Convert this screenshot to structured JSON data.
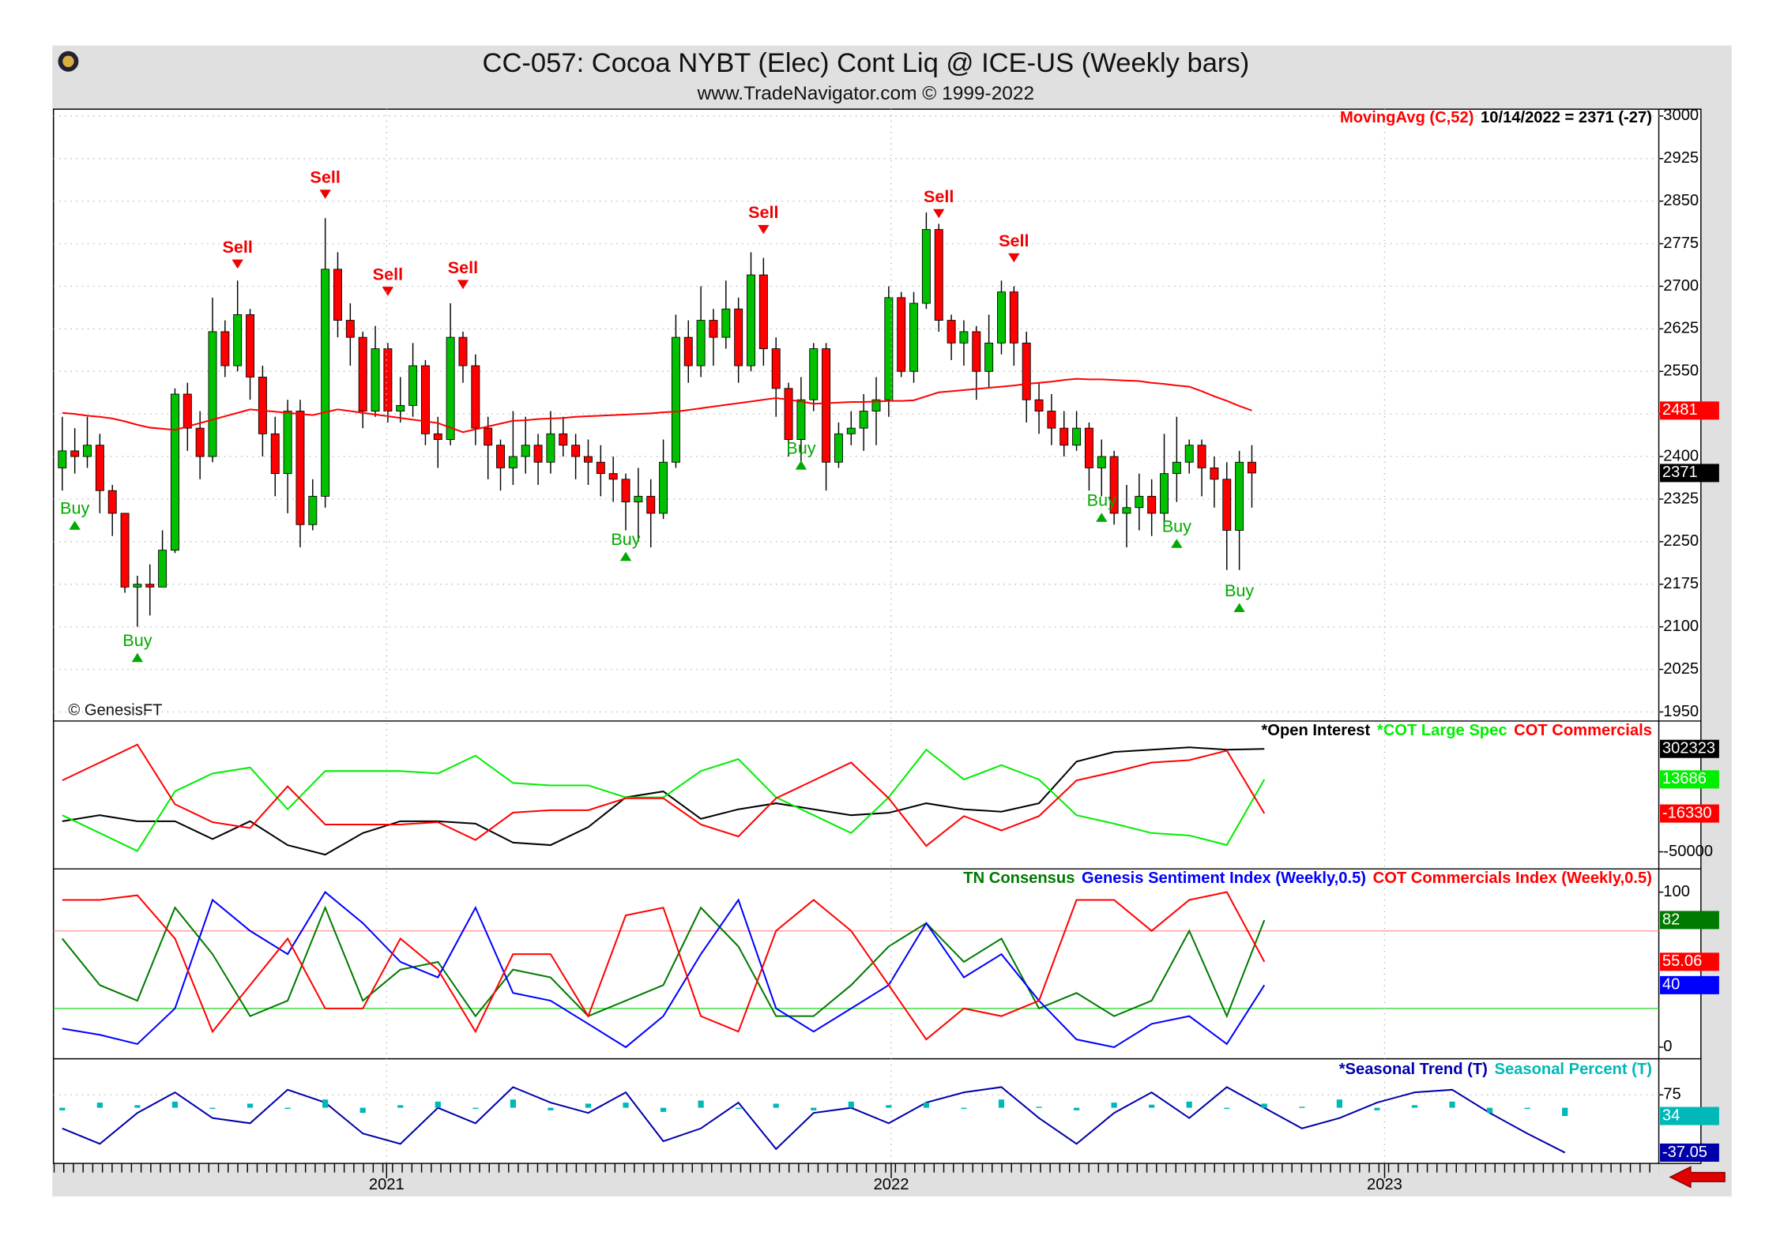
{
  "chart_data": [
    {
      "type": "candlestick",
      "title": "CC-057:  Cocoa NYBT (Elec) Cont Liq @ ICE-US  (Weekly bars)",
      "subtitle": "www.TradeNavigator.com © 1999-2022",
      "annotation": "© GenesisFT",
      "status": "10/14/2022 = 2371 (-27)",
      "xlim": [
        -0.7,
        127.5
      ],
      "ylim": [
        1934,
        3012
      ],
      "yticks": [
        1950,
        2025,
        2100,
        2175,
        2250,
        2325,
        2400,
        2475,
        2550,
        2625,
        2700,
        2775,
        2850,
        2925,
        3000
      ],
      "grid": true,
      "up_color": "#00c000",
      "down_color": "#ff0000",
      "open": [
        2380,
        2410,
        2400,
        2420,
        2340,
        2300,
        2170,
        2175,
        2170,
        2235,
        2510,
        2450,
        2400,
        2620,
        2560,
        2650,
        2540,
        2440,
        2370,
        2480,
        2280,
        2330,
        2730,
        2640,
        2610,
        2480,
        2590,
        2480,
        2490,
        2560,
        2440,
        2430,
        2610,
        2560,
        2450,
        2420,
        2380,
        2400,
        2420,
        2390,
        2440,
        2420,
        2400,
        2390,
        2370,
        2360,
        2320,
        2330,
        2300,
        2390,
        2610,
        2560,
        2640,
        2610,
        2660,
        2560,
        2720,
        2590,
        2520,
        2430,
        2500,
        2590,
        2390,
        2440,
        2450,
        2480,
        2500,
        2680,
        2550,
        2670,
        2800,
        2640,
        2600,
        2620,
        2550,
        2600,
        2690,
        2600,
        2500,
        2480,
        2450,
        2420,
        2450,
        2380,
        2400,
        2300,
        2310,
        2330,
        2300,
        2370,
        2390,
        2420,
        2380,
        2360,
        2270,
        2390
      ],
      "high": [
        2470,
        2450,
        2470,
        2440,
        2350,
        2300,
        2190,
        2210,
        2270,
        2520,
        2530,
        2480,
        2680,
        2640,
        2710,
        2660,
        2560,
        2470,
        2500,
        2500,
        2360,
        2820,
        2760,
        2670,
        2620,
        2630,
        2600,
        2540,
        2600,
        2570,
        2470,
        2670,
        2620,
        2580,
        2470,
        2430,
        2480,
        2470,
        2440,
        2480,
        2470,
        2440,
        2430,
        2420,
        2400,
        2370,
        2380,
        2360,
        2430,
        2650,
        2640,
        2700,
        2660,
        2710,
        2680,
        2760,
        2750,
        2610,
        2530,
        2540,
        2600,
        2600,
        2460,
        2480,
        2510,
        2540,
        2700,
        2690,
        2690,
        2830,
        2810,
        2650,
        2640,
        2630,
        2650,
        2710,
        2700,
        2620,
        2530,
        2510,
        2480,
        2480,
        2460,
        2430,
        2410,
        2350,
        2370,
        2360,
        2440,
        2470,
        2430,
        2430,
        2400,
        2390,
        2410,
        2420
      ],
      "low": [
        2340,
        2370,
        2380,
        2300,
        2260,
        2160,
        2100,
        2120,
        2170,
        2230,
        2410,
        2360,
        2390,
        2540,
        2550,
        2500,
        2400,
        2330,
        2300,
        2240,
        2270,
        2310,
        2610,
        2560,
        2450,
        2470,
        2460,
        2460,
        2470,
        2420,
        2380,
        2420,
        2530,
        2420,
        2360,
        2340,
        2350,
        2370,
        2350,
        2370,
        2400,
        2360,
        2350,
        2330,
        2320,
        2270,
        2250,
        2240,
        2290,
        2380,
        2530,
        2540,
        2560,
        2590,
        2530,
        2550,
        2560,
        2470,
        2400,
        2380,
        2480,
        2340,
        2380,
        2420,
        2410,
        2420,
        2470,
        2540,
        2530,
        2660,
        2620,
        2570,
        2560,
        2500,
        2520,
        2580,
        2560,
        2460,
        2440,
        2420,
        2400,
        2410,
        2340,
        2330,
        2280,
        2240,
        2270,
        2260,
        2280,
        2320,
        2370,
        2330,
        2310,
        2200,
        2200,
        2310
      ],
      "close": [
        2410,
        2400,
        2420,
        2340,
        2300,
        2170,
        2175,
        2170,
        2235,
        2510,
        2450,
        2400,
        2620,
        2560,
        2650,
        2540,
        2440,
        2370,
        2480,
        2280,
        2330,
        2730,
        2640,
        2610,
        2480,
        2590,
        2480,
        2490,
        2560,
        2440,
        2430,
        2610,
        2560,
        2450,
        2420,
        2380,
        2400,
        2420,
        2390,
        2440,
        2420,
        2400,
        2390,
        2370,
        2360,
        2320,
        2330,
        2300,
        2390,
        2610,
        2560,
        2640,
        2610,
        2660,
        2560,
        2720,
        2590,
        2520,
        2430,
        2500,
        2590,
        2390,
        2440,
        2450,
        2480,
        2500,
        2680,
        2550,
        2670,
        2800,
        2640,
        2600,
        2620,
        2550,
        2600,
        2690,
        2600,
        2500,
        2480,
        2450,
        2420,
        2450,
        2380,
        2400,
        2300,
        2310,
        2330,
        2300,
        2370,
        2390,
        2420,
        2380,
        2360,
        2270,
        2390,
        2371
      ],
      "overlay": {
        "name": "MovingAvg (C,52)",
        "color": "#ff0000",
        "values": [
          2477,
          2475,
          2472,
          2470,
          2467,
          2462,
          2456,
          2451,
          2449,
          2447,
          2453,
          2459,
          2465,
          2471,
          2477,
          2483,
          2481,
          2479,
          2477,
          2475,
          2473,
          2478,
          2483,
          2480,
          2477,
          2474,
          2471,
          2468,
          2465,
          2462,
          2459,
          2451,
          2443,
          2448,
          2453,
          2458,
          2463,
          2464,
          2466,
          2467,
          2468,
          2470,
          2471,
          2472,
          2473,
          2474,
          2475,
          2476,
          2478,
          2479,
          2482,
          2485,
          2488,
          2491,
          2494,
          2497,
          2500,
          2503,
          2500,
          2497,
          2493,
          2494,
          2495,
          2496,
          2496,
          2497,
          2498,
          2498,
          2499,
          2506,
          2513,
          2515,
          2517,
          2519,
          2521,
          2523,
          2525,
          2528,
          2530,
          2532,
          2535,
          2537,
          2536,
          2536,
          2535,
          2534,
          2533,
          2530,
          2528,
          2525,
          2523,
          2515,
          2506,
          2498,
          2489,
          2481
        ]
      },
      "signals": [
        {
          "label": "Sell",
          "bar": 14,
          "price": 2739
        },
        {
          "label": "Sell",
          "bar": 21,
          "price": 2862
        },
        {
          "label": "Sell",
          "bar": 26,
          "price": 2691
        },
        {
          "label": "Sell",
          "bar": 32,
          "price": 2703
        },
        {
          "label": "Sell",
          "bar": 56,
          "price": 2800
        },
        {
          "label": "Sell",
          "bar": 70,
          "price": 2828
        },
        {
          "label": "Sell",
          "bar": 76,
          "price": 2750
        },
        {
          "label": "Buy",
          "bar": 1,
          "price": 2279
        },
        {
          "label": "Buy",
          "bar": 6,
          "price": 2046
        },
        {
          "label": "Buy",
          "bar": 45,
          "price": 2224
        },
        {
          "label": "Buy",
          "bar": 59,
          "price": 2385
        },
        {
          "label": "Buy",
          "bar": 83,
          "price": 2293
        },
        {
          "label": "Buy",
          "bar": 89,
          "price": 2247
        },
        {
          "label": "Buy",
          "bar": 94,
          "price": 2134
        }
      ]
    },
    {
      "type": "line",
      "xlim": [
        -0.7,
        127.5
      ],
      "ylim": [
        -65000,
        65000
      ],
      "yticks": [
        -50000
      ],
      "y2lim": [
        140000,
        340000
      ],
      "x": [
        0,
        3,
        6,
        9,
        12,
        15,
        18,
        21,
        24,
        27,
        30,
        33,
        36,
        39,
        42,
        45,
        48,
        51,
        54,
        57,
        60,
        63,
        66,
        69,
        72,
        75,
        78,
        81,
        84,
        87,
        90,
        93,
        96
      ],
      "series": [
        {
          "name": "*Open Interest",
          "color": "#000000",
          "axis": "y2",
          "values": [
            204500,
            212600,
            204500,
            204500,
            180300,
            204500,
            172200,
            159300,
            188400,
            204500,
            204500,
            201300,
            175500,
            172200,
            196400,
            236800,
            244800,
            207700,
            220600,
            228700,
            220600,
            212600,
            215800,
            228700,
            220600,
            217400,
            228700,
            285200,
            298100,
            301300,
            304500,
            301300,
            302323
          ]
        },
        {
          "name": "*COT Large Spec",
          "color": "#00ee00",
          "values": [
            -17800,
            -33500,
            -49300,
            3200,
            18900,
            24100,
            -12600,
            21000,
            21000,
            21000,
            18900,
            34600,
            10500,
            8400,
            8400,
            -2100,
            -2100,
            21000,
            31500,
            -2100,
            -17800,
            -33500,
            -2100,
            39800,
            13600,
            26200,
            13600,
            -17800,
            -25200,
            -33500,
            -35600,
            -44000,
            13686
          ]
        },
        {
          "name": "COT Commercials",
          "color": "#ff0000",
          "values": [
            12800,
            28500,
            44300,
            -8200,
            -23900,
            -29100,
            7600,
            -26000,
            -26000,
            -26000,
            -23900,
            -39600,
            -15500,
            -13400,
            -13400,
            -2900,
            -2900,
            -26000,
            -36500,
            -2900,
            12800,
            28500,
            -2900,
            -44800,
            -18600,
            -31200,
            -18600,
            12800,
            20200,
            28500,
            30600,
            39000,
            -16330
          ]
        }
      ]
    },
    {
      "type": "line",
      "xlim": [
        -0.7,
        127.5
      ],
      "ylim": [
        -7.5,
        115
      ],
      "yticks": [
        0,
        100
      ],
      "hlines": [
        {
          "value": 75,
          "color": "#ff9a9a"
        },
        {
          "value": 25,
          "color": "#33dd33"
        }
      ],
      "x": [
        0,
        3,
        6,
        9,
        12,
        15,
        18,
        21,
        24,
        27,
        30,
        33,
        36,
        39,
        42,
        45,
        48,
        51,
        54,
        57,
        60,
        63,
        66,
        69,
        72,
        75,
        78,
        81,
        84,
        87,
        90,
        93,
        96
      ],
      "series": [
        {
          "name": "TN Consensus",
          "color": "#007a00",
          "values": [
            70,
            40,
            30,
            90,
            60,
            20,
            30,
            90,
            30,
            50,
            55,
            20,
            50,
            45,
            20,
            30,
            40,
            90,
            65,
            20,
            20,
            40,
            65,
            80,
            55,
            70,
            25,
            35,
            20,
            30,
            75,
            20,
            82
          ]
        },
        {
          "name": "Genesis Sentiment Index (Weekly,0.5)",
          "color": "#0000ff",
          "values": [
            12,
            8,
            2,
            25,
            95,
            75,
            60,
            100,
            80,
            55,
            45,
            90,
            35,
            30,
            15,
            0,
            20,
            60,
            95,
            25,
            10,
            25,
            40,
            80,
            45,
            60,
            30,
            5,
            0,
            15,
            20,
            2,
            40
          ]
        },
        {
          "name": "COT Commercials Index (Weekly,0.5)",
          "color": "#ff0000",
          "values": [
            95,
            95,
            98,
            70,
            10,
            40,
            70,
            25,
            25,
            70,
            50,
            10,
            60,
            60,
            20,
            85,
            90,
            20,
            10,
            75,
            95,
            75,
            40,
            5,
            25,
            20,
            30,
            95,
            95,
            75,
            95,
            100,
            55.06
          ]
        }
      ]
    },
    {
      "type": "combo",
      "xlim": [
        -0.7,
        127.5
      ],
      "ylim": [
        -58,
        145
      ],
      "yticks": [
        75
      ],
      "bar_base": 50,
      "grid": true,
      "xticks": [
        {
          "value": 25.9,
          "label": "2021"
        },
        {
          "value": 66.2,
          "label": "2022"
        },
        {
          "value": 105.6,
          "label": "2023"
        }
      ],
      "x": [
        0,
        3,
        6,
        9,
        12,
        15,
        18,
        21,
        24,
        27,
        30,
        33,
        36,
        39,
        42,
        45,
        48,
        51,
        54,
        57,
        60,
        63,
        66,
        69,
        72,
        75,
        78,
        81,
        84,
        87,
        90,
        93,
        96,
        99,
        102,
        105,
        108,
        111,
        114,
        117,
        120
      ],
      "series": [
        {
          "name": "*Seasonal Trend (T)",
          "color": "#0000aa",
          "kind": "line",
          "values": [
            10,
            -20,
            40,
            80,
            30,
            20,
            85,
            60,
            0,
            -20,
            50,
            20,
            90,
            60,
            40,
            80,
            -15,
            10,
            60,
            -30,
            40,
            50,
            20,
            60,
            80,
            90,
            30,
            -20,
            40,
            80,
            30,
            90,
            50,
            10,
            30,
            60,
            80,
            85,
            40,
            0,
            -37.05
          ]
        },
        {
          "name": "Seasonal Percent (T)",
          "color": "#00b8b8",
          "kind": "bar",
          "values": [
            45,
            60,
            55,
            62,
            48,
            58,
            50,
            66,
            40,
            55,
            62,
            50,
            66,
            45,
            58,
            60,
            42,
            64,
            50,
            58,
            45,
            62,
            55,
            60,
            48,
            66,
            52,
            45,
            60,
            56,
            62,
            48,
            58,
            52,
            66,
            45,
            55,
            62,
            40,
            50,
            34
          ]
        }
      ]
    }
  ]
}
